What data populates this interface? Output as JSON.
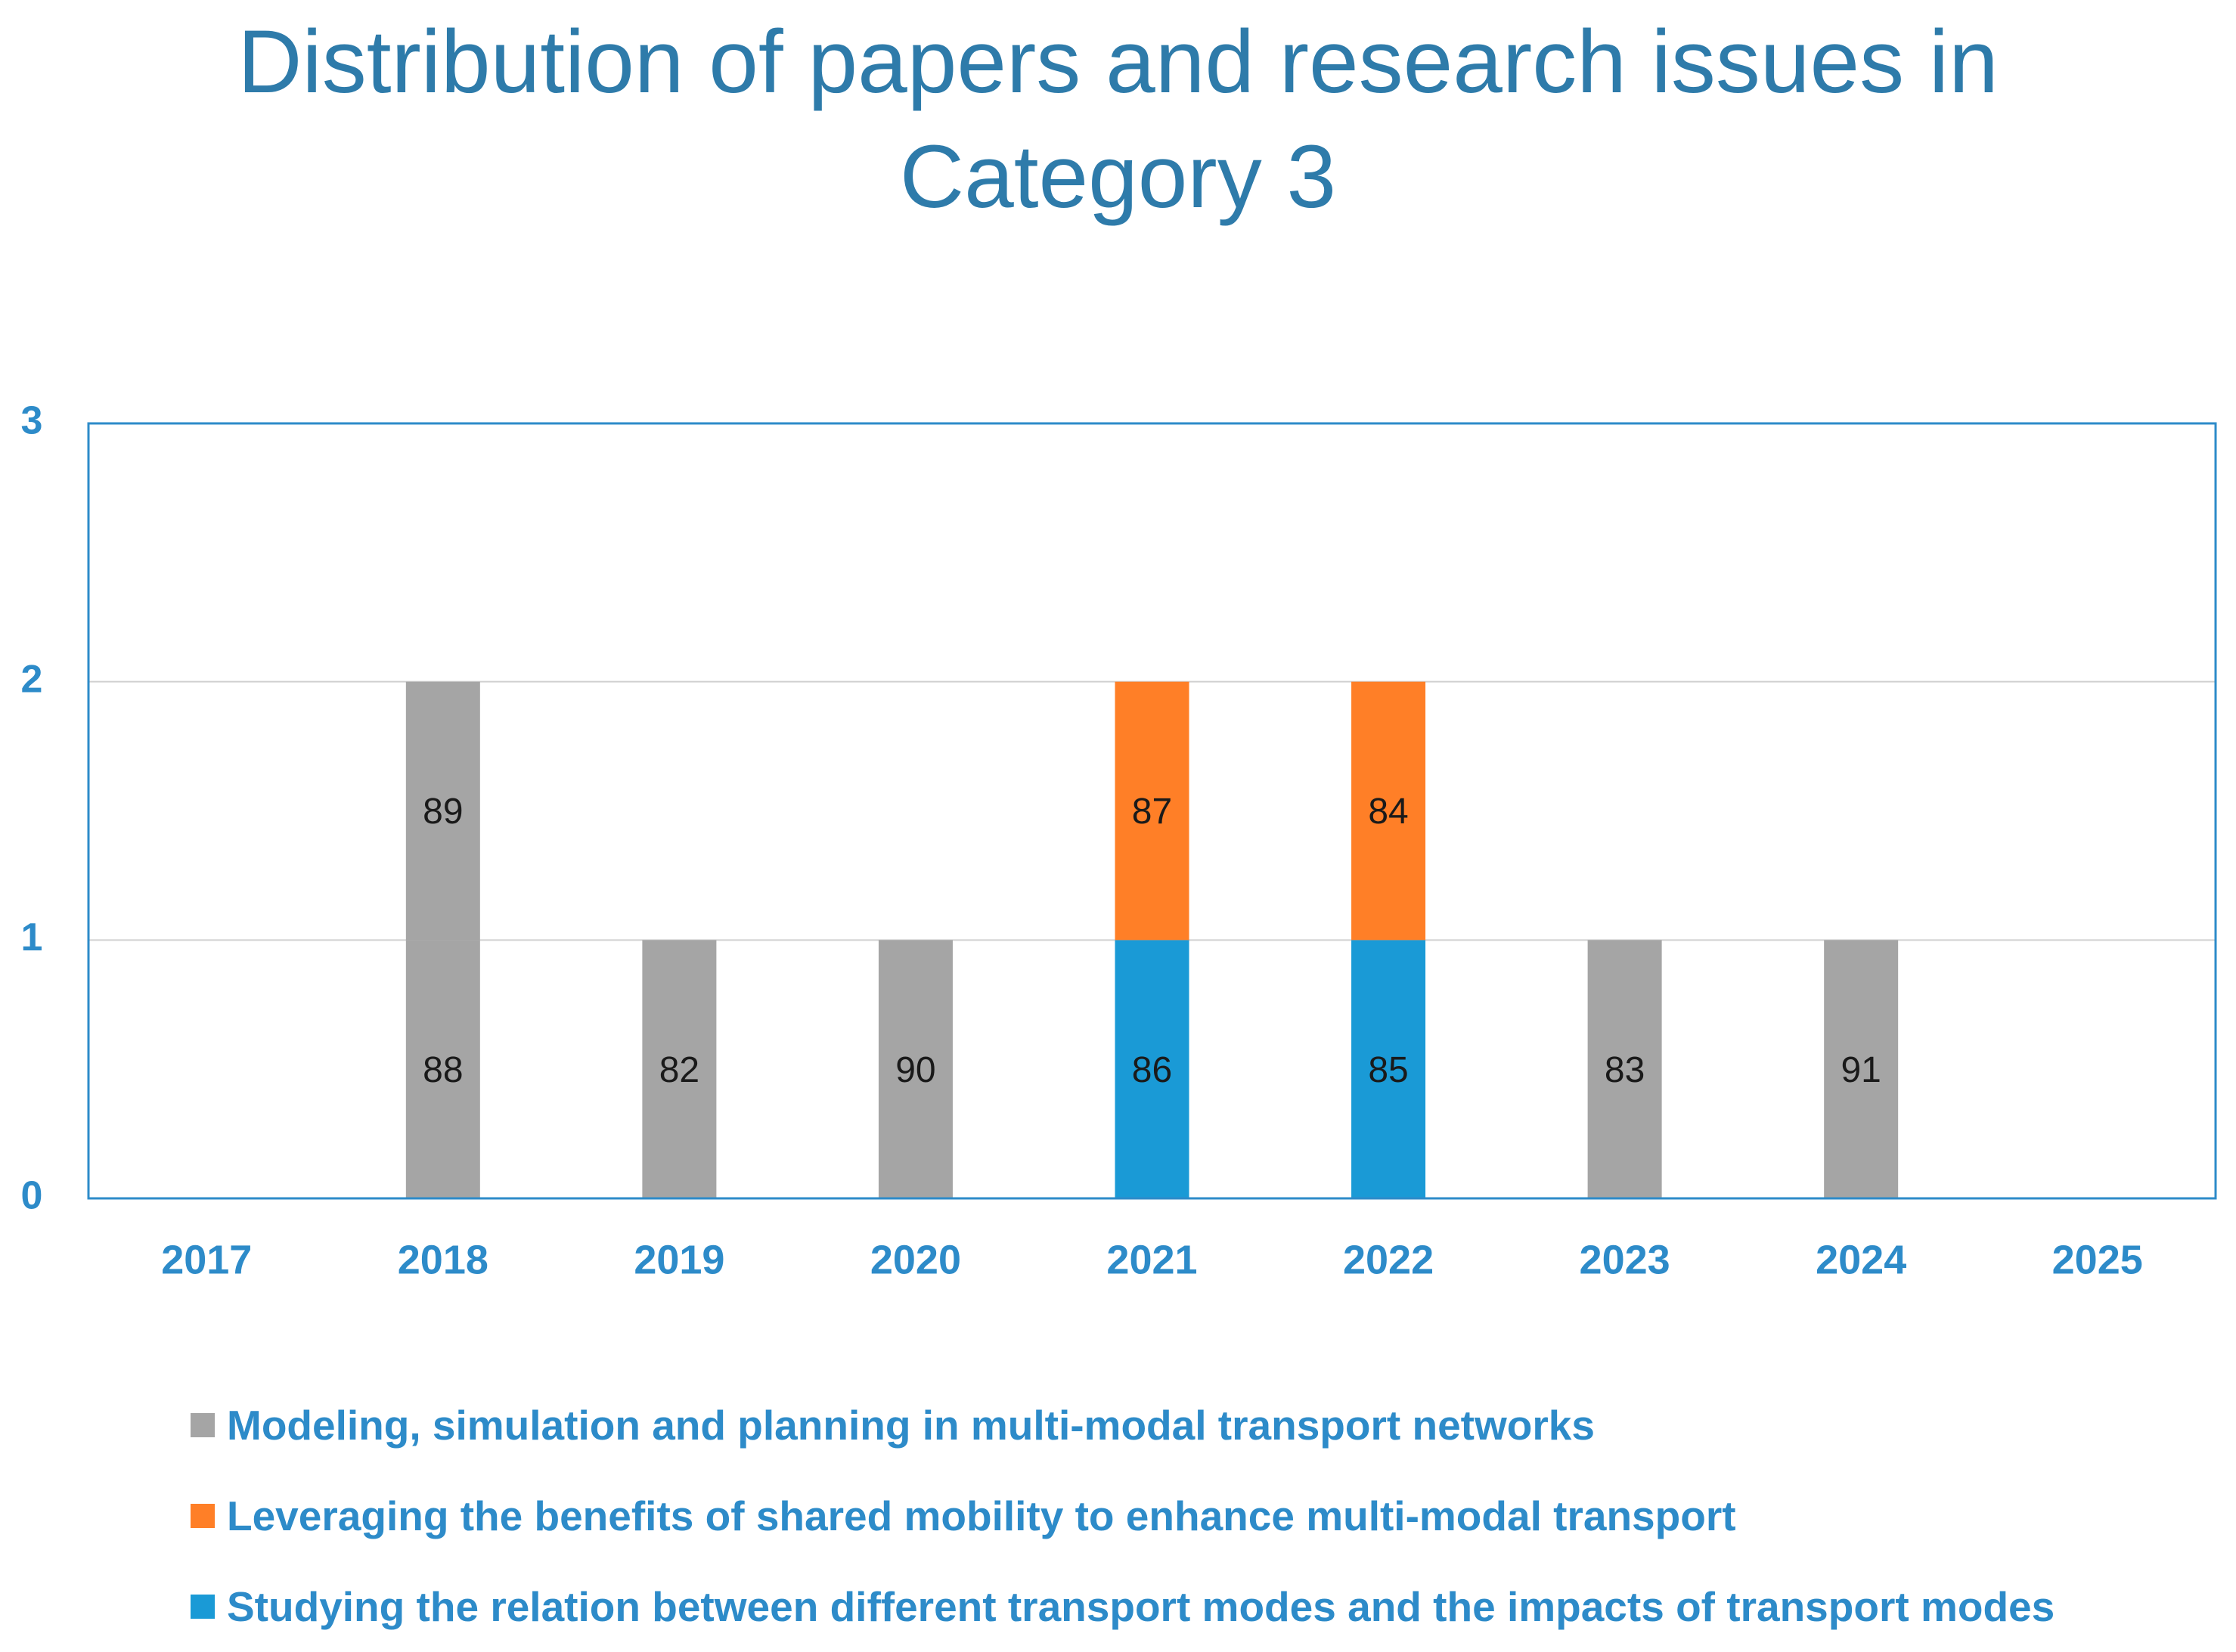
{
  "chart_data": {
    "type": "bar",
    "stacked": true,
    "title": "Distribution of papers and research issues in Category 3",
    "title_lines": [
      "Distribution of papers and research issues in",
      "Category 3"
    ],
    "categories": [
      "2017",
      "2018",
      "2019",
      "2020",
      "2021",
      "2022",
      "2023",
      "2024",
      "2025"
    ],
    "ylim": [
      0,
      3
    ],
    "yticks": [
      "0",
      "1",
      "2",
      "3"
    ],
    "xlabel": "",
    "ylabel": "",
    "grid": true,
    "legend_position": "bottom",
    "colors": {
      "gray": "#A5A5A5",
      "orange": "#FF7F27",
      "blue": "#1A9AD6",
      "axis_text": "#2D8BC9",
      "frame": "#2D8BC9",
      "grid": "#D0D0D0"
    },
    "series": [
      {
        "name": "Modeling, simulation and planning in multi-modal transport networks",
        "color": "#A5A5A5",
        "segments": [
          {
            "year": "2018",
            "label": "88"
          },
          {
            "year": "2018",
            "label": "89"
          },
          {
            "year": "2019",
            "label": "82"
          },
          {
            "year": "2020",
            "label": "90"
          },
          {
            "year": "2023",
            "label": "83"
          },
          {
            "year": "2024",
            "label": "91"
          }
        ]
      },
      {
        "name": "Leveraging the benefits of shared mobility to enhance multi-modal transport",
        "color": "#FF7F27",
        "segments": [
          {
            "year": "2021",
            "label": "87"
          },
          {
            "year": "2022",
            "label": "84"
          }
        ]
      },
      {
        "name": "Studying the relation between different transport modes and the impacts of transport modes",
        "color": "#1A9AD6",
        "segments": [
          {
            "year": "2021",
            "label": "86"
          },
          {
            "year": "2022",
            "label": "85"
          }
        ]
      }
    ],
    "stacks": [
      {
        "year": "2017",
        "segments": []
      },
      {
        "year": "2018",
        "segments": [
          {
            "series": 0,
            "label": "88"
          },
          {
            "series": 0,
            "label": "89"
          }
        ]
      },
      {
        "year": "2019",
        "segments": [
          {
            "series": 0,
            "label": "82"
          }
        ]
      },
      {
        "year": "2020",
        "segments": [
          {
            "series": 0,
            "label": "90"
          }
        ]
      },
      {
        "year": "2021",
        "segments": [
          {
            "series": 2,
            "label": "86"
          },
          {
            "series": 1,
            "label": "87"
          }
        ]
      },
      {
        "year": "2022",
        "segments": [
          {
            "series": 2,
            "label": "85"
          },
          {
            "series": 1,
            "label": "84"
          }
        ]
      },
      {
        "year": "2023",
        "segments": [
          {
            "series": 0,
            "label": "83"
          }
        ]
      },
      {
        "year": "2024",
        "segments": [
          {
            "series": 0,
            "label": "91"
          }
        ]
      },
      {
        "year": "2025",
        "segments": []
      }
    ]
  }
}
